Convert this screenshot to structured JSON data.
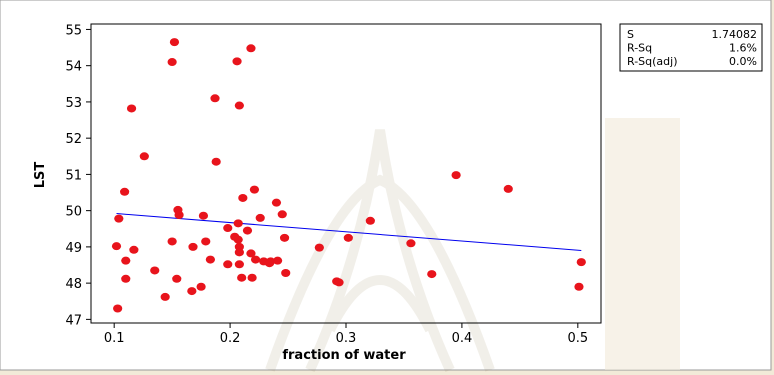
{
  "chart_data": {
    "type": "scatter",
    "xlabel": "fraction of water",
    "ylabel": "LST",
    "xlim": [
      0.08,
      0.52
    ],
    "ylim": [
      46.9,
      55.15
    ],
    "x_ticks": [
      0.1,
      0.2,
      0.3,
      0.4,
      0.5
    ],
    "x_tick_labels": [
      "0.1",
      "0.2",
      "0.3",
      "0.4",
      "0.5"
    ],
    "y_ticks": [
      47,
      48,
      49,
      50,
      51,
      52,
      53,
      54,
      55
    ],
    "y_tick_labels": [
      "47",
      "48",
      "49",
      "50",
      "51",
      "52",
      "53",
      "54",
      "55"
    ],
    "grid": false,
    "point_color": "#e8141c",
    "line_color": "#0000ee",
    "fit_line": {
      "x": [
        0.102,
        0.503
      ],
      "y": [
        49.92,
        48.9
      ]
    },
    "stats": [
      {
        "label": "S",
        "value": "1.74082"
      },
      {
        "label": "R-Sq",
        "value": "1.6%"
      },
      {
        "label": "R-Sq(adj)",
        "value": "0.0%"
      }
    ],
    "points": [
      [
        0.152,
        54.65
      ],
      [
        0.15,
        54.1
      ],
      [
        0.218,
        54.48
      ],
      [
        0.206,
        54.12
      ],
      [
        0.187,
        53.1
      ],
      [
        0.208,
        52.9
      ],
      [
        0.115,
        52.82
      ],
      [
        0.126,
        51.5
      ],
      [
        0.188,
        51.35
      ],
      [
        0.395,
        50.98
      ],
      [
        0.109,
        50.52
      ],
      [
        0.44,
        50.6
      ],
      [
        0.221,
        50.58
      ],
      [
        0.211,
        50.35
      ],
      [
        0.24,
        50.22
      ],
      [
        0.155,
        50.02
      ],
      [
        0.156,
        49.88
      ],
      [
        0.177,
        49.86
      ],
      [
        0.245,
        49.9
      ],
      [
        0.104,
        49.78
      ],
      [
        0.226,
        49.8
      ],
      [
        0.321,
        49.72
      ],
      [
        0.207,
        49.65
      ],
      [
        0.198,
        49.52
      ],
      [
        0.215,
        49.45
      ],
      [
        0.204,
        49.28
      ],
      [
        0.207,
        49.2
      ],
      [
        0.247,
        49.25
      ],
      [
        0.302,
        49.25
      ],
      [
        0.15,
        49.15
      ],
      [
        0.179,
        49.15
      ],
      [
        0.356,
        49.1
      ],
      [
        0.102,
        49.02
      ],
      [
        0.168,
        49.0
      ],
      [
        0.208,
        49.0
      ],
      [
        0.277,
        48.98
      ],
      [
        0.117,
        48.92
      ],
      [
        0.208,
        48.85
      ],
      [
        0.218,
        48.82
      ],
      [
        0.183,
        48.65
      ],
      [
        0.222,
        48.65
      ],
      [
        0.229,
        48.6
      ],
      [
        0.235,
        48.6
      ],
      [
        0.241,
        48.62
      ],
      [
        0.11,
        48.62
      ],
      [
        0.198,
        48.52
      ],
      [
        0.208,
        48.52
      ],
      [
        0.234,
        48.55
      ],
      [
        0.503,
        48.58
      ],
      [
        0.135,
        48.35
      ],
      [
        0.248,
        48.28
      ],
      [
        0.374,
        48.25
      ],
      [
        0.11,
        48.12
      ],
      [
        0.154,
        48.12
      ],
      [
        0.21,
        48.15
      ],
      [
        0.219,
        48.15
      ],
      [
        0.292,
        48.05
      ],
      [
        0.294,
        48.02
      ],
      [
        0.175,
        47.9
      ],
      [
        0.167,
        47.78
      ],
      [
        0.501,
        47.9
      ],
      [
        0.144,
        47.62
      ],
      [
        0.103,
        47.3
      ]
    ]
  }
}
